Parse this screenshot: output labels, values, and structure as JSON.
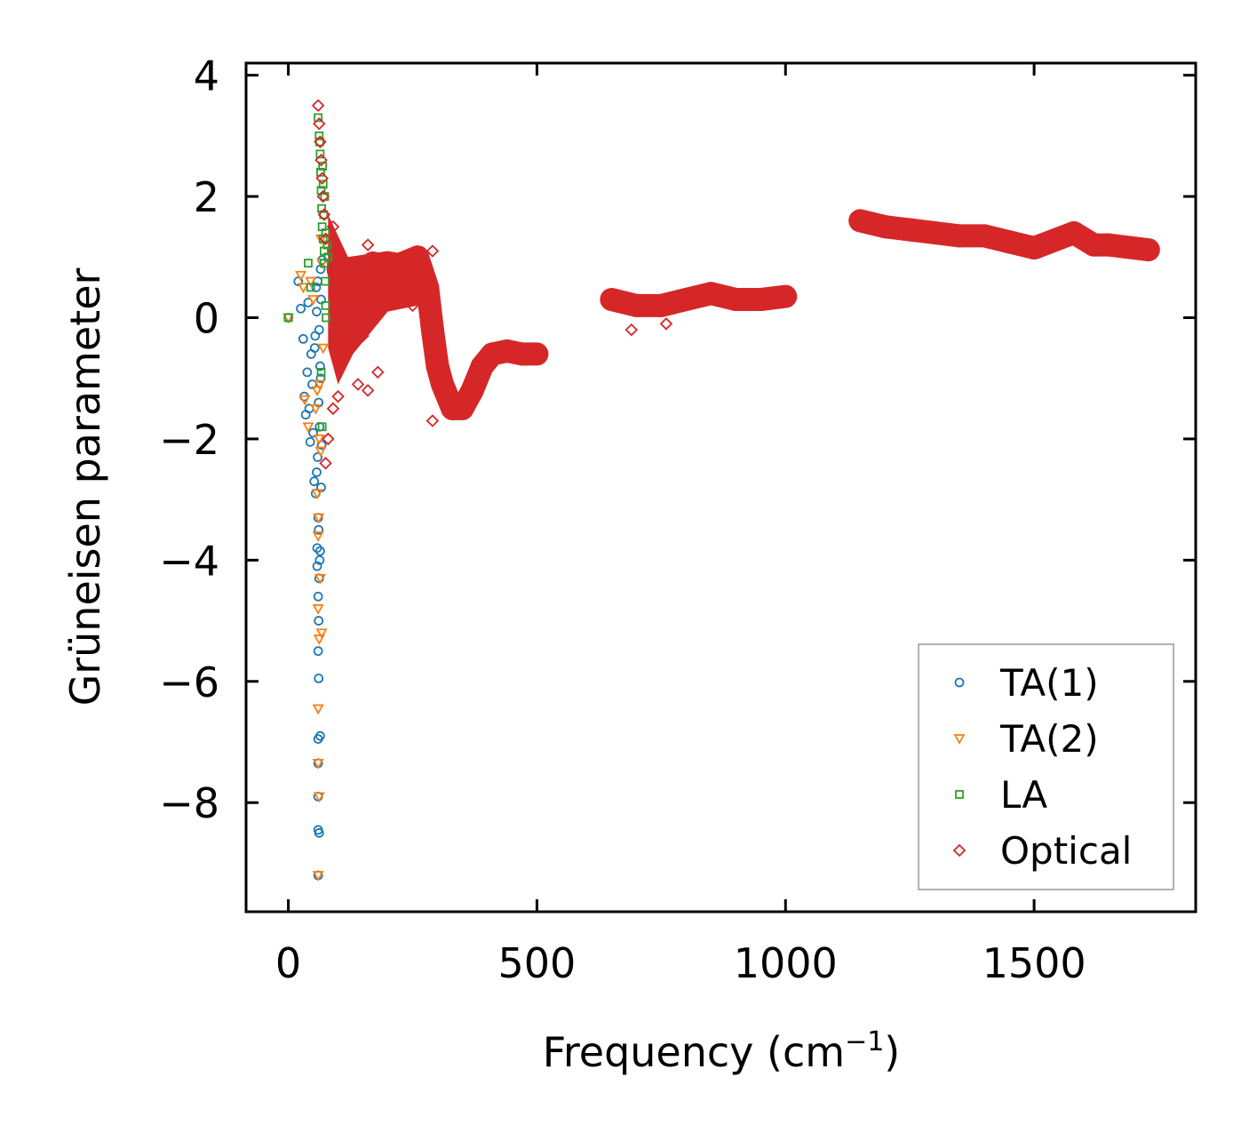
{
  "chart_data": {
    "type": "scatter",
    "title": "",
    "xlabel": "Frequency (cm",
    "xlabel_sup": "−1",
    "xlabel_end": ")",
    "ylabel": "Grüneisen parameter",
    "xlim": [
      -85,
      1825
    ],
    "ylim": [
      -9.8,
      4.2
    ],
    "xticks": [
      0,
      500,
      1000,
      1500
    ],
    "yticks": [
      4,
      2,
      0,
      -2,
      -4,
      -6,
      -8
    ],
    "xtick_labels": [
      "0",
      "500",
      "1000",
      "1500"
    ],
    "ytick_labels": [
      "4",
      "2",
      "0",
      "−2",
      "−4",
      "−6",
      "−8"
    ],
    "legend_position": "lower-right",
    "series": [
      {
        "name": "TA(1)",
        "marker": "circle",
        "color": "#1f77b4",
        "points": [
          [
            0,
            0
          ],
          [
            20,
            0.6
          ],
          [
            25,
            0.15
          ],
          [
            30,
            -0.35
          ],
          [
            32,
            -1.3
          ],
          [
            35,
            -1.6
          ],
          [
            38,
            -0.9
          ],
          [
            40,
            0.25
          ],
          [
            42,
            -1.5
          ],
          [
            44,
            -2.05
          ],
          [
            46,
            -0.6
          ],
          [
            48,
            -1.1
          ],
          [
            50,
            -1.9
          ],
          [
            52,
            -2.7
          ],
          [
            54,
            -0.3
          ],
          [
            55,
            -2.9
          ],
          [
            56,
            0.5
          ],
          [
            57,
            -2.55
          ],
          [
            58,
            -3.8
          ],
          [
            58,
            -4.1
          ],
          [
            59,
            -2.3
          ],
          [
            60,
            -3.3
          ],
          [
            60,
            -4.6
          ],
          [
            60,
            -5.5
          ],
          [
            60,
            -6.95
          ],
          [
            60,
            -7.35
          ],
          [
            60,
            -7.9
          ],
          [
            60,
            -8.45
          ],
          [
            60,
            -9.2
          ],
          [
            61,
            -3.5
          ],
          [
            61,
            -5.0
          ],
          [
            61,
            -5.95
          ],
          [
            62,
            -4.3
          ],
          [
            62,
            -8.5
          ],
          [
            63,
            -4.0
          ],
          [
            63,
            -1.8
          ],
          [
            64,
            -3.85
          ],
          [
            64,
            -6.9
          ],
          [
            65,
            -1.0
          ],
          [
            65,
            0.8
          ],
          [
            66,
            0.3
          ],
          [
            67,
            -2.1
          ],
          [
            68,
            0.95
          ],
          [
            62,
            -0.2
          ],
          [
            57,
            0.1
          ],
          [
            53,
            -0.5
          ],
          [
            59,
            0.6
          ],
          [
            64,
            -0.8
          ],
          [
            61,
            -1.4
          ],
          [
            66,
            -2.8
          ]
        ]
      },
      {
        "name": "TA(2)",
        "marker": "triangle-down",
        "color": "#ff7f0e",
        "points": [
          [
            0,
            0
          ],
          [
            25,
            0.7
          ],
          [
            30,
            0.5
          ],
          [
            33,
            -1.35
          ],
          [
            40,
            -1.8
          ],
          [
            45,
            0.6
          ],
          [
            50,
            0.3
          ],
          [
            55,
            -1.5
          ],
          [
            58,
            -2.9
          ],
          [
            60,
            -3.6
          ],
          [
            60,
            -4.8
          ],
          [
            60,
            -6.45
          ],
          [
            60,
            -7.35
          ],
          [
            60,
            -9.2
          ],
          [
            61,
            -3.3
          ],
          [
            62,
            -5.3
          ],
          [
            62,
            -7.9
          ],
          [
            63,
            -1.1
          ],
          [
            64,
            -4.3
          ],
          [
            65,
            -2.2
          ],
          [
            66,
            1.3
          ],
          [
            67,
            -5.2
          ],
          [
            68,
            0.9
          ],
          [
            70,
            -0.5
          ],
          [
            62,
            -2.0
          ],
          [
            58,
            -1.2
          ]
        ]
      },
      {
        "name": "LA",
        "marker": "square",
        "color": "#2ca02c",
        "points": [
          [
            0,
            0
          ],
          [
            40,
            0.9
          ],
          [
            45,
            0.5
          ],
          [
            60,
            3.3
          ],
          [
            62,
            3.0
          ],
          [
            64,
            2.7
          ],
          [
            65,
            2.4
          ],
          [
            66,
            2.1
          ],
          [
            67,
            1.8
          ],
          [
            68,
            1.5
          ],
          [
            70,
            1.3
          ],
          [
            70,
            2.2
          ],
          [
            72,
            1.1
          ],
          [
            72,
            0.9
          ],
          [
            74,
            0.6
          ],
          [
            75,
            0.2
          ],
          [
            76,
            0.0
          ],
          [
            78,
            1.2
          ],
          [
            80,
            1.0
          ],
          [
            66,
            -0.9
          ],
          [
            68,
            -1.8
          ],
          [
            63,
            2.9
          ],
          [
            69,
            2.5
          ],
          [
            71,
            1.7
          ],
          [
            73,
            2.0
          ],
          [
            75,
            1.4
          ]
        ]
      },
      {
        "name": "Optical",
        "marker": "diamond",
        "color": "#d62728",
        "points": [
          [
            60,
            3.5
          ],
          [
            62,
            3.2
          ],
          [
            64,
            2.9
          ],
          [
            66,
            2.6
          ],
          [
            68,
            2.3
          ],
          [
            70,
            2.0
          ],
          [
            72,
            1.7
          ],
          [
            75,
            1.3
          ],
          [
            90,
            1.5
          ],
          [
            100,
            0.8
          ],
          [
            110,
            0.5
          ],
          [
            130,
            0.2
          ],
          [
            150,
            0.6
          ],
          [
            170,
            0.9
          ],
          [
            200,
            0.7
          ],
          [
            230,
            0.9
          ],
          [
            260,
            1.0
          ],
          [
            280,
            0.5
          ],
          [
            290,
            -0.2
          ],
          [
            300,
            -0.8
          ],
          [
            310,
            -1.1
          ],
          [
            330,
            -1.5
          ],
          [
            350,
            -1.5
          ],
          [
            370,
            -1.2
          ],
          [
            390,
            -0.8
          ],
          [
            410,
            -0.6
          ],
          [
            440,
            -0.55
          ],
          [
            470,
            -0.6
          ],
          [
            500,
            -0.6
          ],
          [
            650,
            0.3
          ],
          [
            700,
            0.2
          ],
          [
            750,
            0.2
          ],
          [
            800,
            0.3
          ],
          [
            850,
            0.4
          ],
          [
            900,
            0.3
          ],
          [
            950,
            0.3
          ],
          [
            1000,
            0.35
          ],
          [
            1150,
            1.6
          ],
          [
            1200,
            1.5
          ],
          [
            1250,
            1.45
          ],
          [
            1300,
            1.4
          ],
          [
            1350,
            1.35
          ],
          [
            1400,
            1.35
          ],
          [
            1450,
            1.25
          ],
          [
            1500,
            1.15
          ],
          [
            1580,
            1.4
          ],
          [
            1620,
            1.2
          ],
          [
            1650,
            1.2
          ],
          [
            1730,
            1.12
          ],
          [
            120,
            -0.5
          ],
          [
            140,
            -1.1
          ],
          [
            160,
            -1.2
          ],
          [
            100,
            -1.3
          ],
          [
            90,
            -1.5
          ],
          [
            80,
            -2.0
          ],
          [
            75,
            -2.4
          ],
          [
            150,
            -0.3
          ],
          [
            180,
            -0.9
          ],
          [
            120,
            0.9
          ],
          [
            160,
            1.2
          ],
          [
            250,
            0.2
          ],
          [
            200,
            0.3
          ],
          [
            290,
            1.1
          ],
          [
            290,
            -1.7
          ],
          [
            690,
            -0.2
          ],
          [
            760,
            -0.1
          ]
        ]
      }
    ]
  }
}
